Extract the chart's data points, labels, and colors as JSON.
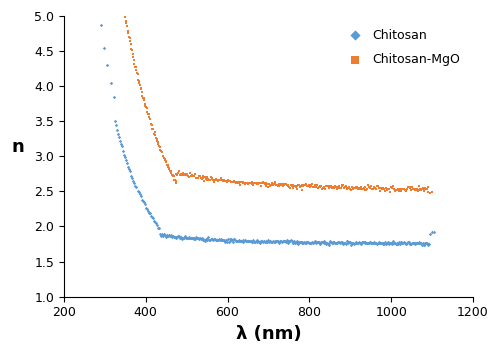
{
  "xlabel": "λ (nm)",
  "ylabel": "n",
  "xlim": [
    200,
    1200
  ],
  "ylim": [
    1,
    5
  ],
  "yticks": [
    1,
    1.5,
    2,
    2.5,
    3,
    3.5,
    4,
    4.5,
    5
  ],
  "xticks": [
    200,
    400,
    600,
    800,
    1000,
    1200
  ],
  "cs_color": "#5B9BD5",
  "mgo_color": "#ED7D31",
  "cs_marker": "D",
  "mgo_marker": "s",
  "cs_label": "Chitosan",
  "mgo_label": "Chitosan-MgO",
  "marker_size": 3.0,
  "background_color": "#ffffff"
}
